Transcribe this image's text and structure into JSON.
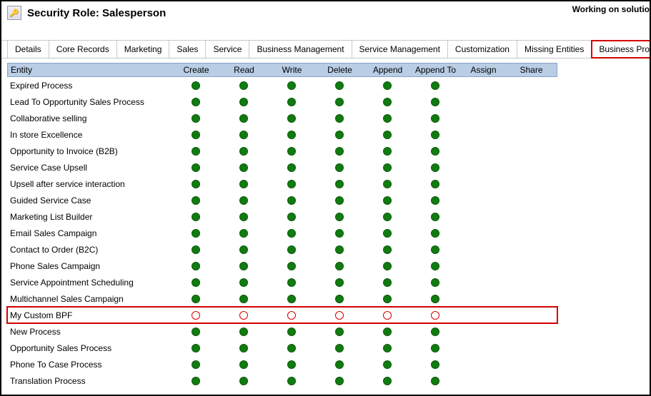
{
  "header": {
    "title": "Security Role: Salesperson",
    "working_on": "Working on solutio",
    "icon_text": "🔑"
  },
  "tabs": [
    {
      "label": "Details",
      "highlight": false
    },
    {
      "label": "Core Records",
      "highlight": false
    },
    {
      "label": "Marketing",
      "highlight": false
    },
    {
      "label": "Sales",
      "highlight": false
    },
    {
      "label": "Service",
      "highlight": false
    },
    {
      "label": "Business Management",
      "highlight": false
    },
    {
      "label": "Service Management",
      "highlight": false
    },
    {
      "label": "Customization",
      "highlight": false
    },
    {
      "label": "Missing Entities",
      "highlight": false
    },
    {
      "label": "Business Process Flows",
      "highlight": true
    }
  ],
  "columns": {
    "entity": "Entity",
    "privileges": [
      "Create",
      "Read",
      "Write",
      "Delete",
      "Append",
      "Append To",
      "Assign",
      "Share"
    ]
  },
  "privilege_states": {
    "full": {
      "shape": "dot-full",
      "color": "#107c10"
    },
    "none": {
      "shape": "dot-empty",
      "color": "#d40000"
    },
    "blank": {
      "shape": "dot-blank",
      "color": "transparent"
    }
  },
  "rows": [
    {
      "entity": "Expired Process",
      "privs": [
        "full",
        "full",
        "full",
        "full",
        "full",
        "full",
        "blank",
        "blank"
      ],
      "highlight": false
    },
    {
      "entity": "Lead To Opportunity Sales Process",
      "privs": [
        "full",
        "full",
        "full",
        "full",
        "full",
        "full",
        "blank",
        "blank"
      ],
      "highlight": false
    },
    {
      "entity": "Collaborative selling",
      "privs": [
        "full",
        "full",
        "full",
        "full",
        "full",
        "full",
        "blank",
        "blank"
      ],
      "highlight": false
    },
    {
      "entity": "In store Excellence",
      "privs": [
        "full",
        "full",
        "full",
        "full",
        "full",
        "full",
        "blank",
        "blank"
      ],
      "highlight": false
    },
    {
      "entity": "Opportunity to Invoice (B2B)",
      "privs": [
        "full",
        "full",
        "full",
        "full",
        "full",
        "full",
        "blank",
        "blank"
      ],
      "highlight": false
    },
    {
      "entity": "Service Case Upsell",
      "privs": [
        "full",
        "full",
        "full",
        "full",
        "full",
        "full",
        "blank",
        "blank"
      ],
      "highlight": false
    },
    {
      "entity": "Upsell after service interaction",
      "privs": [
        "full",
        "full",
        "full",
        "full",
        "full",
        "full",
        "blank",
        "blank"
      ],
      "highlight": false
    },
    {
      "entity": "Guided Service Case",
      "privs": [
        "full",
        "full",
        "full",
        "full",
        "full",
        "full",
        "blank",
        "blank"
      ],
      "highlight": false
    },
    {
      "entity": "Marketing List Builder",
      "privs": [
        "full",
        "full",
        "full",
        "full",
        "full",
        "full",
        "blank",
        "blank"
      ],
      "highlight": false
    },
    {
      "entity": "Email Sales Campaign",
      "privs": [
        "full",
        "full",
        "full",
        "full",
        "full",
        "full",
        "blank",
        "blank"
      ],
      "highlight": false
    },
    {
      "entity": "Contact to Order (B2C)",
      "privs": [
        "full",
        "full",
        "full",
        "full",
        "full",
        "full",
        "blank",
        "blank"
      ],
      "highlight": false
    },
    {
      "entity": "Phone Sales Campaign",
      "privs": [
        "full",
        "full",
        "full",
        "full",
        "full",
        "full",
        "blank",
        "blank"
      ],
      "highlight": false
    },
    {
      "entity": "Service Appointment Scheduling",
      "privs": [
        "full",
        "full",
        "full",
        "full",
        "full",
        "full",
        "blank",
        "blank"
      ],
      "highlight": false
    },
    {
      "entity": "Multichannel Sales Campaign",
      "privs": [
        "full",
        "full",
        "full",
        "full",
        "full",
        "full",
        "blank",
        "blank"
      ],
      "highlight": false
    },
    {
      "entity": "My Custom BPF",
      "privs": [
        "none",
        "none",
        "none",
        "none",
        "none",
        "none",
        "blank",
        "blank"
      ],
      "highlight": true
    },
    {
      "entity": "New Process",
      "privs": [
        "full",
        "full",
        "full",
        "full",
        "full",
        "full",
        "blank",
        "blank"
      ],
      "highlight": false
    },
    {
      "entity": "Opportunity Sales Process",
      "privs": [
        "full",
        "full",
        "full",
        "full",
        "full",
        "full",
        "blank",
        "blank"
      ],
      "highlight": false
    },
    {
      "entity": "Phone To Case Process",
      "privs": [
        "full",
        "full",
        "full",
        "full",
        "full",
        "full",
        "blank",
        "blank"
      ],
      "highlight": false
    },
    {
      "entity": "Translation Process",
      "privs": [
        "full",
        "full",
        "full",
        "full",
        "full",
        "full",
        "blank",
        "blank"
      ],
      "highlight": false
    }
  ]
}
